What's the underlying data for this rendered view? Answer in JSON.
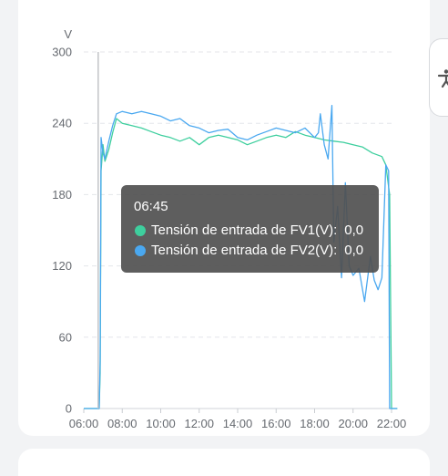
{
  "chart_data": {
    "type": "line",
    "unit": "V",
    "ylim": [
      0,
      300
    ],
    "y_ticks": [
      "0",
      "60",
      "120",
      "180",
      "240",
      "300"
    ],
    "x_ticks": [
      "06:00",
      "08:00",
      "10:00",
      "12:00",
      "14:00",
      "16:00",
      "18:00",
      "20:00",
      "22:00"
    ],
    "xlim_hours": [
      6,
      22
    ],
    "grid": true,
    "series": [
      {
        "name": "Tensión de entrada de FV1(V)",
        "color": "#3ecf9e",
        "x": [
          6.0,
          6.8,
          6.85,
          6.9,
          7.0,
          7.1,
          7.3,
          7.5,
          7.7,
          8.0,
          8.5,
          9.0,
          9.5,
          10.0,
          10.5,
          11.0,
          11.5,
          12.0,
          12.5,
          13.0,
          13.5,
          14.0,
          14.5,
          15.0,
          15.5,
          16.0,
          16.5,
          17.0,
          17.5,
          18.0,
          18.5,
          19.0,
          19.5,
          20.0,
          20.5,
          21.0,
          21.5,
          21.7,
          21.9,
          22.0,
          22.1,
          22.3
        ],
        "y": [
          0,
          0,
          30,
          200,
          222,
          208,
          218,
          232,
          244,
          240,
          238,
          236,
          233,
          230,
          228,
          225,
          228,
          222,
          228,
          230,
          228,
          226,
          222,
          225,
          228,
          230,
          228,
          233,
          230,
          228,
          226,
          225,
          224,
          222,
          220,
          215,
          212,
          205,
          180,
          0,
          0,
          0
        ]
      },
      {
        "name": "Tensión de entrada de FV2(V)",
        "color": "#4aa8f0",
        "x": [
          6.0,
          6.8,
          6.85,
          6.9,
          7.0,
          7.1,
          7.3,
          7.5,
          7.7,
          8.0,
          8.5,
          9.0,
          9.5,
          10.0,
          10.5,
          11.0,
          11.5,
          12.0,
          12.5,
          13.0,
          13.5,
          14.0,
          14.5,
          15.0,
          15.5,
          16.0,
          16.5,
          17.0,
          17.5,
          18.0,
          18.2,
          18.3,
          18.5,
          18.7,
          18.9,
          19.0,
          19.2,
          19.4,
          19.6,
          19.8,
          20.0,
          20.3,
          20.6,
          20.9,
          21.1,
          21.3,
          21.5,
          21.7,
          21.85,
          21.9,
          22.0,
          22.1,
          22.3
        ],
        "y": [
          0,
          0,
          40,
          228,
          215,
          210,
          225,
          238,
          248,
          250,
          248,
          250,
          248,
          246,
          242,
          244,
          238,
          236,
          232,
          234,
          235,
          228,
          226,
          230,
          233,
          236,
          234,
          232,
          236,
          228,
          232,
          248,
          222,
          210,
          255,
          140,
          170,
          110,
          190,
          120,
          112,
          118,
          90,
          128,
          108,
          100,
          110,
          205,
          200,
          0,
          0,
          0,
          0
        ]
      }
    ]
  },
  "tooltip": {
    "time": "06:45",
    "rows": [
      {
        "label": "Tensión de entrada de FV1(V):",
        "value": "0,0",
        "color": "#3ecf9e"
      },
      {
        "label": "Tensión de entrada de FV2(V):",
        "value": "0,0",
        "color": "#4aa8f0"
      }
    ]
  },
  "cursor": {
    "x_hours": 6.75
  },
  "accessibility": {
    "icon": "accessibility-person-icon"
  }
}
